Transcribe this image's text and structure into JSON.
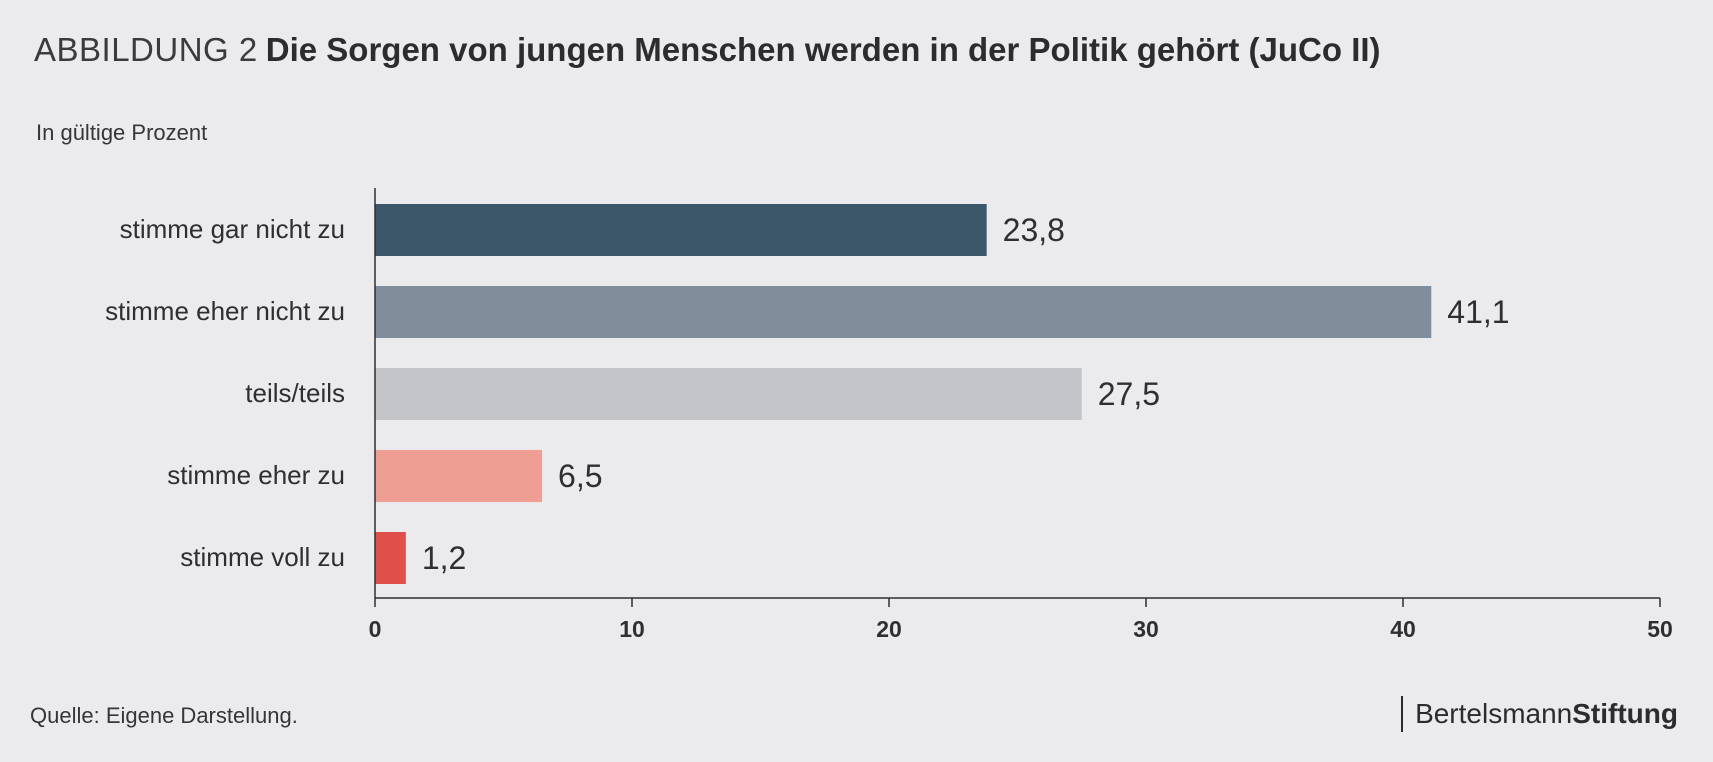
{
  "header": {
    "prefix": "ABBILDUNG 2",
    "title": "Die Sorgen von jungen Menschen werden in der Politik gehört (JuCo II)",
    "unit_note": "In gültige Prozent"
  },
  "footer": {
    "source": "Quelle: Eigene Darstellung.",
    "logo_part1": "Bertelsmann",
    "logo_part2": "Stiftung"
  },
  "chart_data": {
    "type": "bar",
    "orientation": "horizontal",
    "categories": [
      "stimme gar nicht zu",
      "stimme eher nicht zu",
      "teils/teils",
      "stimme eher zu",
      "stimme voll zu"
    ],
    "values": [
      23.8,
      41.1,
      27.5,
      6.5,
      1.2
    ],
    "value_labels": [
      "23,8",
      "41,1",
      "27,5",
      "6,5",
      "1,2"
    ],
    "colors": [
      "#3b5668",
      "#808d9a",
      "#c4c5c9",
      "#ef9e94",
      "#e0504a"
    ],
    "xlim": [
      0,
      50
    ],
    "xticks": [
      0,
      10,
      20,
      30,
      40,
      50
    ],
    "grid": false,
    "legend": "none"
  }
}
